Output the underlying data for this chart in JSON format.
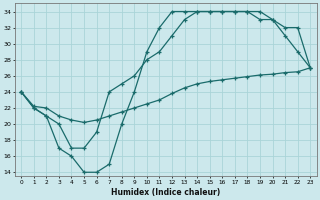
{
  "xlabel": "Humidex (Indice chaleur)",
  "bg_color": "#cce8ec",
  "grid_color": "#aad4d8",
  "line_color": "#1a6b6b",
  "xlim": [
    -0.5,
    23.5
  ],
  "ylim": [
    13.5,
    35.0
  ],
  "xticks": [
    0,
    1,
    2,
    3,
    4,
    5,
    6,
    7,
    8,
    9,
    10,
    11,
    12,
    13,
    14,
    15,
    16,
    17,
    18,
    19,
    20,
    21,
    22,
    23
  ],
  "yticks": [
    14,
    16,
    18,
    20,
    22,
    24,
    26,
    28,
    30,
    32,
    34
  ],
  "line1_x": [
    0,
    1,
    2,
    3,
    4,
    5,
    6,
    7,
    8,
    9,
    10,
    11,
    12,
    13,
    14,
    15,
    16,
    17,
    18,
    19,
    20,
    21,
    22,
    23
  ],
  "line1_y": [
    24,
    22,
    21,
    17,
    16,
    14,
    14,
    15,
    20,
    24,
    29,
    32,
    34,
    34,
    34,
    34,
    34,
    34,
    34,
    34,
    33,
    31,
    29,
    27
  ],
  "line2_x": [
    0,
    1,
    2,
    3,
    4,
    5,
    6,
    7,
    8,
    9,
    10,
    11,
    12,
    13,
    14,
    15,
    16,
    17,
    18,
    19,
    20,
    21,
    22,
    23
  ],
  "line2_y": [
    24,
    22,
    21,
    20,
    17,
    17,
    19,
    24,
    25,
    26,
    28,
    29,
    31,
    33,
    34,
    34,
    34,
    34,
    34,
    33,
    33,
    32,
    32,
    27
  ],
  "line3_x": [
    0,
    1,
    2,
    3,
    4,
    5,
    6,
    7,
    8,
    9,
    10,
    11,
    12,
    13,
    14,
    15,
    16,
    17,
    18,
    19,
    20,
    21,
    22,
    23
  ],
  "line3_y": [
    24,
    22.2,
    22,
    21,
    20.5,
    20.2,
    20.5,
    21,
    21.5,
    22,
    22.5,
    23,
    23.8,
    24.5,
    25,
    25.3,
    25.5,
    25.7,
    25.9,
    26.1,
    26.2,
    26.4,
    26.5,
    27
  ]
}
